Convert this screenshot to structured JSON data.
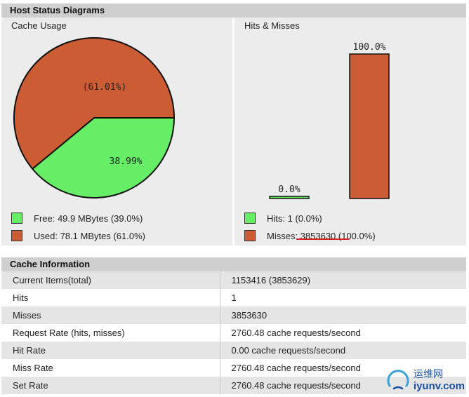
{
  "host_status": {
    "header": "Host Status Diagrams",
    "cache_usage": {
      "title": "Cache Usage",
      "pie_used_label": "(61.01%)",
      "pie_free_label": "38.99%",
      "legend": [
        {
          "label": "Free: 49.9 MBytes (39.0%)",
          "color": "#66ee66"
        },
        {
          "label": "Used: 78.1 MBytes (61.0%)",
          "color": "#cc5c33"
        }
      ]
    },
    "hits_misses": {
      "title": "Hits & Misses",
      "hits_bar_label": "0.0%",
      "misses_bar_label": "100.0%",
      "legend": [
        {
          "label": "Hits: 1 (0.0%)",
          "color": "#66ee66"
        },
        {
          "label": "Misses: 3853630 (100.0%)",
          "color": "#cc5c33"
        }
      ]
    }
  },
  "chart_data": [
    {
      "type": "pie",
      "title": "Cache Usage",
      "categories": [
        "Free",
        "Used"
      ],
      "values": [
        38.99,
        61.01
      ],
      "colors": [
        "#66ee66",
        "#cc5c33"
      ]
    },
    {
      "type": "bar",
      "title": "Hits & Misses",
      "categories": [
        "Hits",
        "Misses"
      ],
      "values": [
        0.0,
        100.0
      ],
      "colors": [
        "#66ee66",
        "#cc5c33"
      ],
      "ylim": [
        0,
        100
      ]
    }
  ],
  "cache_info": {
    "header": "Cache Information",
    "rows": [
      {
        "key": "Current Items(total)",
        "value": "1153416 (3853629)"
      },
      {
        "key": "Hits",
        "value": "1"
      },
      {
        "key": "Misses",
        "value": "3853630"
      },
      {
        "key": "Request Rate (hits, misses)",
        "value": "2760.48 cache requests/second"
      },
      {
        "key": "Hit Rate",
        "value": "0.00 cache requests/second"
      },
      {
        "key": "Miss Rate",
        "value": "2760.48 cache requests/second"
      },
      {
        "key": "Set Rate",
        "value": "2760.48 cache requests/second"
      }
    ]
  },
  "watermark": {
    "chinese": "运维网",
    "url": "iyunv.com"
  }
}
